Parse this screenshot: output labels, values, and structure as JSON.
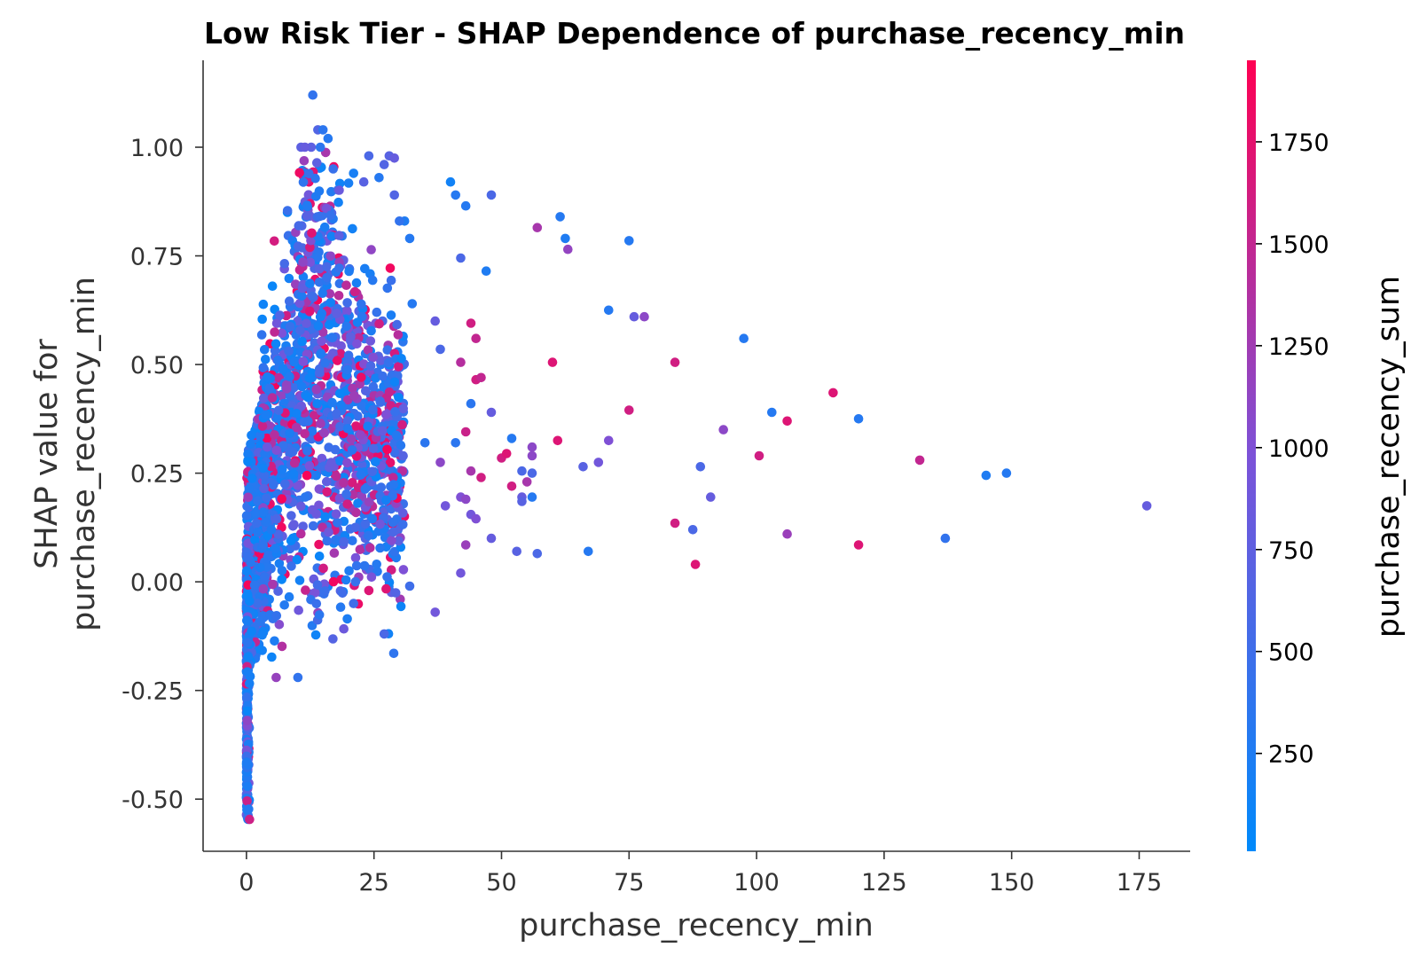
{
  "chart_data": {
    "type": "scatter",
    "title": "Low Risk Tier - SHAP Dependence of purchase_recency_min",
    "xlabel": "purchase_recency_min",
    "ylabel_line1": "SHAP value for",
    "ylabel_line2": "purchase_recency_min",
    "xlim": [
      -8.5,
      185
    ],
    "ylim": [
      -0.62,
      1.2
    ],
    "x_ticks": [
      {
        "value": 0,
        "label": "0"
      },
      {
        "value": 25,
        "label": "25"
      },
      {
        "value": 50,
        "label": "50"
      },
      {
        "value": 75,
        "label": "75"
      },
      {
        "value": 100,
        "label": "100"
      },
      {
        "value": 125,
        "label": "125"
      },
      {
        "value": 150,
        "label": "150"
      },
      {
        "value": 175,
        "label": "175"
      }
    ],
    "y_ticks": [
      {
        "value": -0.5,
        "label": "-0.50"
      },
      {
        "value": -0.25,
        "label": "-0.25"
      },
      {
        "value": 0.0,
        "label": "0.00"
      },
      {
        "value": 0.25,
        "label": "0.25"
      },
      {
        "value": 0.5,
        "label": "0.50"
      },
      {
        "value": 0.75,
        "label": "0.75"
      },
      {
        "value": 1.0,
        "label": "1.00"
      }
    ],
    "colorbar": {
      "label": "purchase_recency_sum",
      "range": [
        10,
        1950
      ],
      "ticks": [
        {
          "value": 250,
          "label": "250"
        },
        {
          "value": 500,
          "label": "500"
        },
        {
          "value": 750,
          "label": "750"
        },
        {
          "value": 1000,
          "label": "1000"
        },
        {
          "value": 1250,
          "label": "1250"
        },
        {
          "value": 1500,
          "label": "1500"
        },
        {
          "value": 1750,
          "label": "1750"
        }
      ],
      "color_low": "#008afb",
      "color_mid": "#7c52d8",
      "color_high": "#ff0052"
    },
    "dense_cluster_seed": 20240611,
    "dense_cluster_count": 2200,
    "points": [
      [
        13,
        1.12,
        400
      ],
      [
        14,
        1.04,
        650
      ],
      [
        15,
        1.04,
        350
      ],
      [
        16,
        1.02,
        300
      ],
      [
        17,
        0.95,
        450
      ],
      [
        24,
        0.98,
        600
      ],
      [
        28,
        0.98,
        700
      ],
      [
        29,
        0.975,
        800
      ],
      [
        27,
        0.96,
        650
      ],
      [
        26,
        0.93,
        300
      ],
      [
        21,
        0.94,
        200
      ],
      [
        23,
        0.92,
        700
      ],
      [
        29,
        0.89,
        650
      ],
      [
        31,
        0.83,
        250
      ],
      [
        30,
        0.83,
        400
      ],
      [
        32,
        0.79,
        300
      ],
      [
        40,
        0.92,
        150
      ],
      [
        41,
        0.89,
        300
      ],
      [
        43,
        0.865,
        300
      ],
      [
        48,
        0.89,
        600
      ],
      [
        42,
        0.745,
        600
      ],
      [
        47,
        0.715,
        250
      ],
      [
        57,
        0.815,
        1300
      ],
      [
        61.5,
        0.84,
        300
      ],
      [
        62.5,
        0.79,
        250
      ],
      [
        63,
        0.765,
        1150
      ],
      [
        75,
        0.785,
        300
      ],
      [
        71,
        0.625,
        300
      ],
      [
        76,
        0.61,
        800
      ],
      [
        78,
        0.61,
        1100
      ],
      [
        97.5,
        0.56,
        300
      ],
      [
        32.5,
        0.64,
        300
      ],
      [
        37,
        0.6,
        800
      ],
      [
        38,
        0.535,
        600
      ],
      [
        44,
        0.595,
        1600
      ],
      [
        45,
        0.56,
        1500
      ],
      [
        42,
        0.505,
        1400
      ],
      [
        45,
        0.465,
        1600
      ],
      [
        46,
        0.47,
        1500
      ],
      [
        60,
        0.505,
        1700
      ],
      [
        84,
        0.505,
        1600
      ],
      [
        44,
        0.41,
        350
      ],
      [
        48,
        0.39,
        800
      ],
      [
        75,
        0.395,
        1600
      ],
      [
        103,
        0.39,
        300
      ],
      [
        115,
        0.435,
        1700
      ],
      [
        120,
        0.375,
        300
      ],
      [
        106,
        0.37,
        1700
      ],
      [
        93.5,
        0.35,
        1100
      ],
      [
        43,
        0.345,
        1550
      ],
      [
        41,
        0.32,
        350
      ],
      [
        35,
        0.32,
        350
      ],
      [
        38,
        0.275,
        1100
      ],
      [
        52,
        0.33,
        300
      ],
      [
        50,
        0.285,
        1600
      ],
      [
        51,
        0.295,
        1700
      ],
      [
        56,
        0.31,
        1100
      ],
      [
        56,
        0.29,
        1100
      ],
      [
        61,
        0.325,
        1700
      ],
      [
        71,
        0.325,
        1000
      ],
      [
        66,
        0.265,
        700
      ],
      [
        69,
        0.275,
        900
      ],
      [
        44,
        0.255,
        1300
      ],
      [
        46,
        0.24,
        1600
      ],
      [
        54,
        0.255,
        600
      ],
      [
        56,
        0.25,
        600
      ],
      [
        52,
        0.22,
        1600
      ],
      [
        55,
        0.23,
        1300
      ],
      [
        54,
        0.195,
        800
      ],
      [
        56,
        0.195,
        300
      ],
      [
        54,
        0.185,
        700
      ],
      [
        42,
        0.195,
        1000
      ],
      [
        43,
        0.19,
        1100
      ],
      [
        39,
        0.175,
        900
      ],
      [
        44,
        0.155,
        900
      ],
      [
        45,
        0.145,
        1000
      ],
      [
        48,
        0.1,
        800
      ],
      [
        43,
        0.085,
        1200
      ],
      [
        53,
        0.07,
        700
      ],
      [
        57,
        0.065,
        600
      ],
      [
        67,
        0.07,
        300
      ],
      [
        89,
        0.265,
        600
      ],
      [
        91,
        0.195,
        800
      ],
      [
        100.5,
        0.29,
        1600
      ],
      [
        84,
        0.135,
        1600
      ],
      [
        87.5,
        0.12,
        600
      ],
      [
        88,
        0.04,
        1700
      ],
      [
        106,
        0.11,
        1200
      ],
      [
        120,
        0.085,
        1700
      ],
      [
        132,
        0.28,
        1500
      ],
      [
        137,
        0.1,
        400
      ],
      [
        145,
        0.245,
        250
      ],
      [
        149,
        0.25,
        300
      ],
      [
        176.5,
        0.175,
        800
      ],
      [
        42,
        0.02,
        900
      ],
      [
        32,
        -0.01,
        500
      ],
      [
        37,
        -0.07,
        900
      ],
      [
        27,
        -0.12,
        600
      ],
      [
        24,
        -0.02,
        1700
      ],
      [
        21,
        -0.05,
        500
      ]
    ]
  }
}
